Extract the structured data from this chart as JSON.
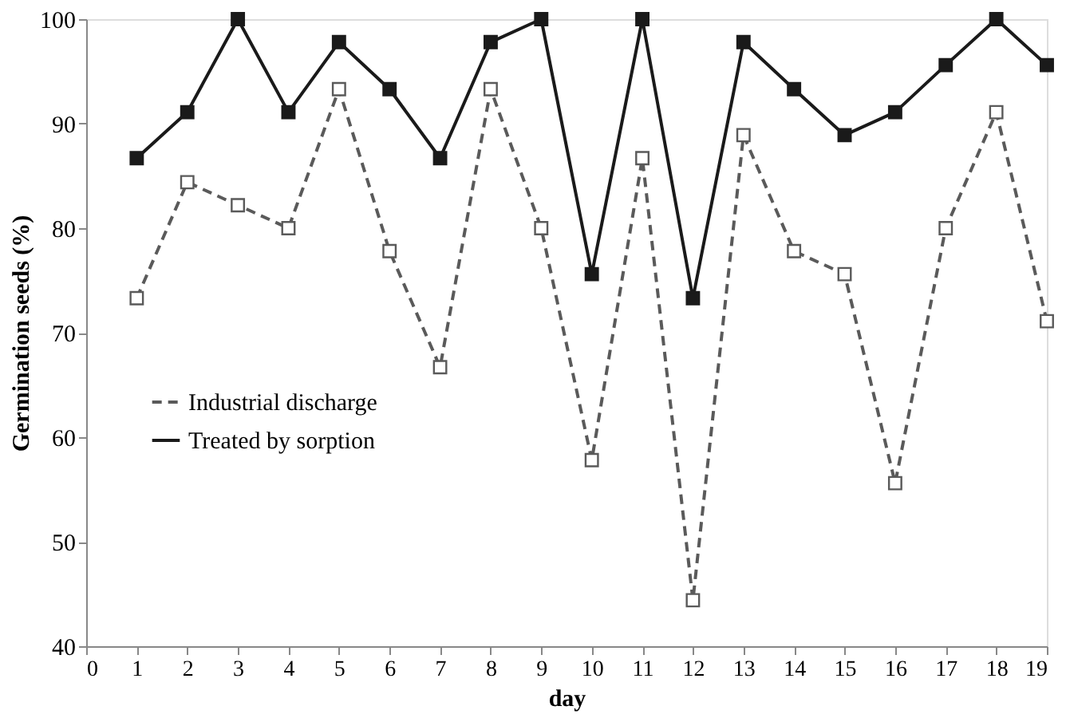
{
  "chart_data": {
    "type": "line",
    "xlabel": "day",
    "ylabel": "Germination seeds (%)",
    "x": [
      1,
      2,
      3,
      4,
      5,
      6,
      7,
      8,
      9,
      10,
      11,
      12,
      13,
      14,
      15,
      16,
      17,
      18,
      19
    ],
    "series": [
      {
        "name": "Industrial discharge",
        "color": "#5a5a5a",
        "line_style": "dashed",
        "values": [
          73.3,
          84.4,
          82.2,
          80,
          93.3,
          77.8,
          66.7,
          93.3,
          80,
          57.8,
          86.7,
          44.4,
          88.9,
          77.8,
          75.6,
          55.6,
          80,
          91.1,
          71.1
        ]
      },
      {
        "name": "Treated by sorption",
        "color": "#1a1a1a",
        "line_style": "solid",
        "values": [
          86.7,
          91.1,
          100,
          91.1,
          97.8,
          93.3,
          86.7,
          97.8,
          100,
          75.6,
          100,
          73.3,
          97.8,
          93.3,
          88.9,
          91.1,
          95.6,
          100,
          95.6
        ]
      }
    ],
    "marker": "square",
    "xlim": [
      0,
      19
    ],
    "xticks": [
      0,
      1,
      2,
      3,
      4,
      5,
      6,
      7,
      8,
      9,
      10,
      11,
      12,
      13,
      14,
      15,
      16,
      17,
      18,
      19
    ],
    "ylim": [
      40,
      100
    ],
    "yticks": [
      40,
      50,
      60,
      70,
      80,
      90,
      100
    ],
    "grid": false,
    "legend": "bottom left"
  }
}
